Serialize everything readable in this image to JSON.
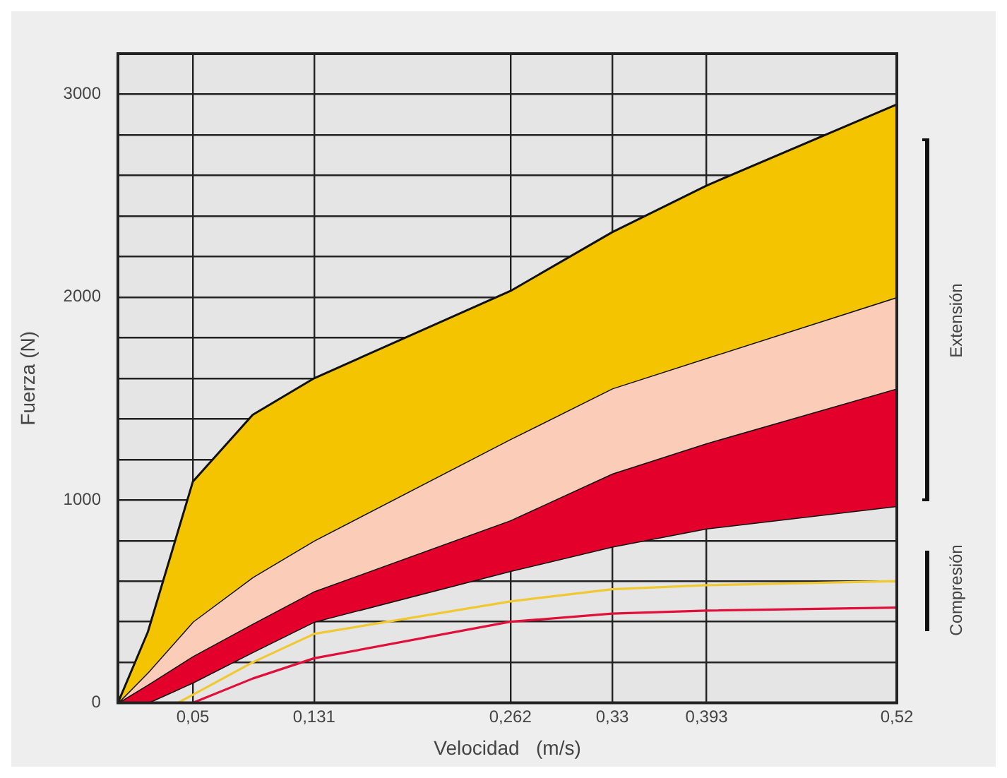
{
  "chart_data": {
    "type": "area",
    "xlabel": "Velocidad   (m/s)",
    "ylabel": "Fuerza (N)",
    "xlim": [
      0,
      0.52
    ],
    "ylim": [
      0,
      3200
    ],
    "xticks": [
      {
        "value": 0.05,
        "label": "0,05"
      },
      {
        "value": 0.131,
        "label": "0,131"
      },
      {
        "value": 0.262,
        "label": "0,262"
      },
      {
        "value": 0.33,
        "label": "0,33"
      },
      {
        "value": 0.393,
        "label": "0,393"
      },
      {
        "value": 0.52,
        "label": "0,52"
      }
    ],
    "yticks": [
      0,
      {
        "value": 200,
        "label": null
      },
      {
        "value": 400,
        "label": null
      },
      {
        "value": 600,
        "label": null
      },
      {
        "value": 800,
        "label": null
      },
      1000,
      {
        "value": 1200,
        "label": null
      },
      {
        "value": 1400,
        "label": null
      },
      {
        "value": 1600,
        "label": null
      },
      {
        "value": 1800,
        "label": null
      },
      2000,
      {
        "value": 2200,
        "label": null
      },
      {
        "value": 2400,
        "label": null
      },
      {
        "value": 2600,
        "label": null
      },
      {
        "value": 2800,
        "label": null
      },
      3000
    ],
    "grid": true,
    "legend": false,
    "series": [
      {
        "color": "#f5c400",
        "x": [
          0,
          0.02,
          0.05,
          0.09,
          0.131,
          0.262,
          0.33,
          0.393,
          0.52
        ],
        "values": [
          0,
          350,
          1090,
          1420,
          1600,
          2030,
          2320,
          2550,
          2950
        ]
      },
      {
        "color": "#fbcdb8",
        "x": [
          0,
          0.02,
          0.05,
          0.09,
          0.131,
          0.262,
          0.33,
          0.393,
          0.52
        ],
        "values": [
          0,
          150,
          400,
          620,
          800,
          1300,
          1550,
          1700,
          2000
        ]
      },
      {
        "color": "#e3002b",
        "x": [
          0,
          0.02,
          0.05,
          0.09,
          0.131,
          0.262,
          0.33,
          0.393,
          0.52
        ],
        "values": [
          0,
          90,
          230,
          390,
          550,
          900,
          1130,
          1280,
          1550
        ]
      },
      {
        "type": "line",
        "color": "#111111",
        "x": [
          0,
          0.02,
          0.05,
          0.09,
          0.131,
          0.262,
          0.33,
          0.393,
          0.52
        ],
        "values": [
          0,
          0,
          100,
          250,
          400,
          650,
          770,
          860,
          970
        ]
      },
      {
        "type": "line",
        "color": "#f0c830",
        "x": [
          0.04,
          0.05,
          0.09,
          0.131,
          0.262,
          0.33,
          0.393,
          0.52
        ],
        "values": [
          0,
          40,
          200,
          340,
          500,
          560,
          580,
          600
        ]
      },
      {
        "type": "line",
        "color": "#e0103a",
        "x": [
          0.05,
          0.09,
          0.131,
          0.262,
          0.33,
          0.393,
          0.52
        ],
        "values": [
          0,
          120,
          220,
          400,
          440,
          455,
          470
        ]
      }
    ],
    "annotations": [
      "Extensión",
      "Compresión"
    ]
  }
}
